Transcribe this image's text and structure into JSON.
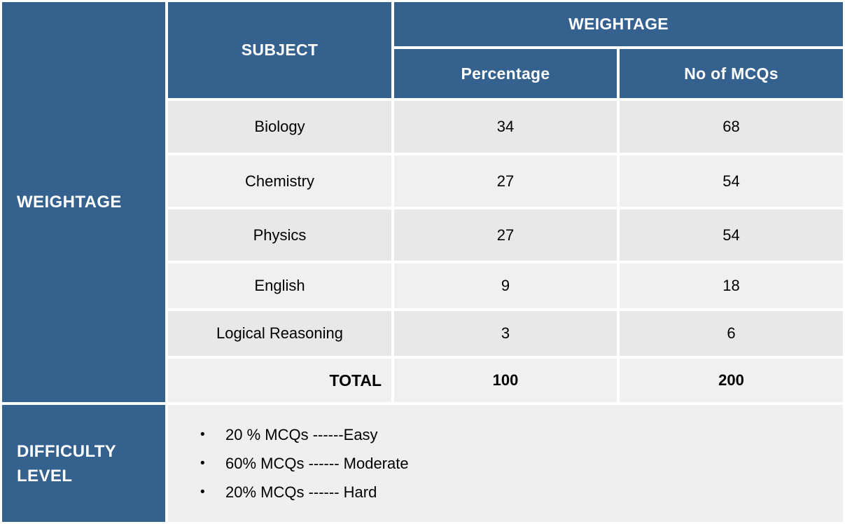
{
  "colors": {
    "header_blue": "#35618F",
    "row_gray_dark": "#e8e8e8",
    "row_gray_light": "#f0f0f0",
    "difficulty_bg": "#efefef",
    "header_text": "#ffffff",
    "body_text": "#000000",
    "background": "#ffffff"
  },
  "weightage_section": {
    "row_header": "WEIGHTAGE",
    "subject_header": "SUBJECT",
    "group_header": "WEIGHTAGE",
    "sub_headers": {
      "percentage": "Percentage",
      "mcqs": "No of MCQs"
    },
    "rows": [
      {
        "subject": "Biology",
        "percentage": "34",
        "mcqs": "68"
      },
      {
        "subject": "Chemistry",
        "percentage": "27",
        "mcqs": "54"
      },
      {
        "subject": "Physics",
        "percentage": "27",
        "mcqs": "54"
      },
      {
        "subject": "English",
        "percentage": "9",
        "mcqs": "18"
      },
      {
        "subject": "Logical Reasoning",
        "percentage": "3",
        "mcqs": "6"
      }
    ],
    "total": {
      "label": "TOTAL",
      "percentage": "100",
      "mcqs": "200"
    }
  },
  "difficulty_section": {
    "row_header_lines": [
      "DIFFICULTY",
      "LEVEL"
    ],
    "bullet_char": "•",
    "bullets": [
      "20 % MCQs ------Easy",
      "60% MCQs ------ Moderate",
      "20% MCQs ------ Hard"
    ]
  }
}
